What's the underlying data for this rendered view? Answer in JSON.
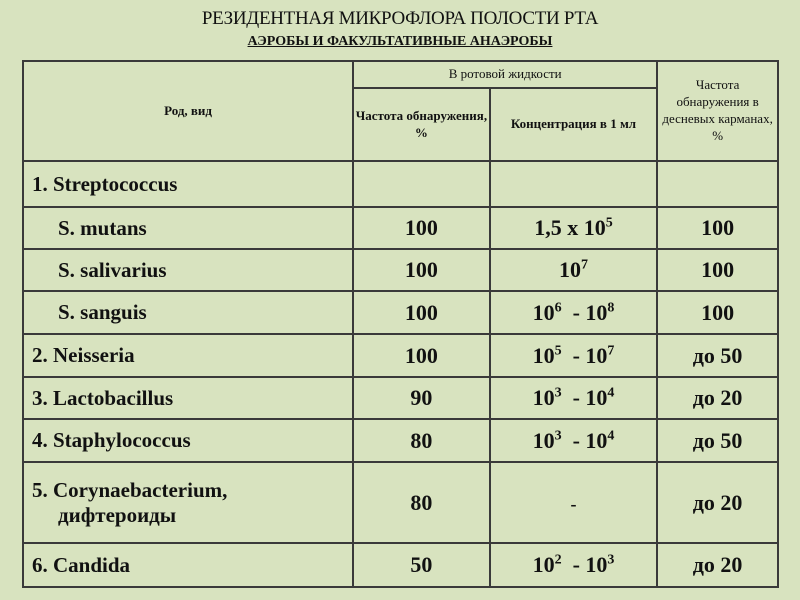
{
  "title": "РЕЗИДЕНТНАЯ МИКРОФЛОРА ПОЛОСТИ РТА",
  "subtitle": "АЭРОБЫ И ФАКУЛЬТАТИВНЫЕ АНАЭРОБЫ",
  "headers": {
    "genus": "Род, вид",
    "oral_fluid": "В ротовой жидкости",
    "frequency": "Частота обнаружения, %",
    "concentration": "Концентрация в 1 мл",
    "gingival": "Частота обнаружения в десневых карманах, %"
  },
  "rows": [
    {
      "name": "1. Streptococcus",
      "freq": "",
      "conc": [],
      "gum": "",
      "sub": false
    },
    {
      "name": "S. mutans",
      "freq": "100",
      "conc": [
        {
          "t": "1,5 х 10",
          "e": "5"
        }
      ],
      "gum": "100",
      "sub": true
    },
    {
      "name": "S. salivarius",
      "freq": "100",
      "conc": [
        {
          "t": "10",
          "e": "7"
        }
      ],
      "gum": "100",
      "sub": true
    },
    {
      "name": "S. sanguis",
      "freq": "100",
      "conc": [
        {
          "t": "10",
          "e": "6"
        },
        {
          "t": "  - 10",
          "e": "8"
        }
      ],
      "gum": "100",
      "sub": true
    },
    {
      "name": "2. Neisseria",
      "freq": "100",
      "conc": [
        {
          "t": "10",
          "e": "5"
        },
        {
          "t": "  - 10",
          "e": "7"
        }
      ],
      "gum": "до 50",
      "sub": false
    },
    {
      "name": "3. Lactobacillus",
      "freq": "90",
      "conc": [
        {
          "t": "10",
          "e": "3"
        },
        {
          "t": "  - 10",
          "e": "4"
        }
      ],
      "gum": "до 20",
      "sub": false
    },
    {
      "name": "4. Staphylococcus",
      "freq": "80",
      "conc": [
        {
          "t": "10",
          "e": "3"
        },
        {
          "t": "  - 10",
          "e": "4"
        }
      ],
      "gum": "до 50",
      "sub": false
    },
    {
      "name": "5. Corynaebacterium,",
      "name2": "дифтероиды",
      "freq": "80",
      "conc": [
        {
          "t": "-",
          "e": ""
        }
      ],
      "gum": "до 20",
      "sub": false
    },
    {
      "name": "6. Candida",
      "freq": "50",
      "conc": [
        {
          "t": "10",
          "e": "2"
        },
        {
          "t": "  - 10",
          "e": "3"
        }
      ],
      "gum": "до 20",
      "sub": false
    }
  ]
}
